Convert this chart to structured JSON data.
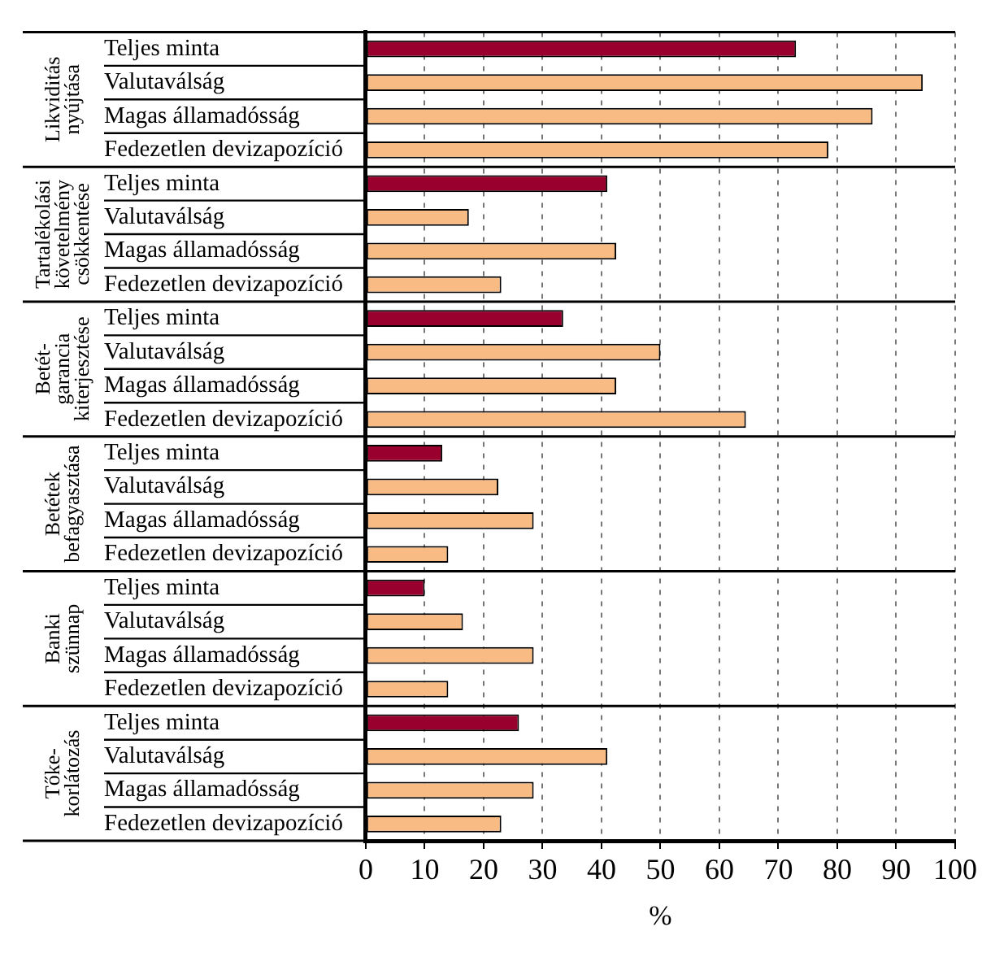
{
  "chart_data": {
    "type": "bar",
    "orientation": "horizontal",
    "xlabel": "%",
    "categories": [
      "Teljes minta",
      "Valutaválság",
      "Magas államadósság",
      "Fedezetlen devizapozíció",
      "Teljes minta",
      "Valutaválság",
      "Magas államadósság",
      "Fedezetlen devizapozíció",
      "Teljes minta",
      "Valutaválság",
      "Magas államadósság",
      "Fedezetlen devizapozíció",
      "Teljes minta",
      "Valutaválság",
      "Magas államadósság",
      "Fedezetlen devizapozíció",
      "Teljes minta",
      "Valutaválság",
      "Magas államadósság",
      "Fedezetlen devizapozíció",
      "Teljes minta",
      "Valutaválság",
      "Magas államadósság",
      "Fedezetlen devizapozíció"
    ],
    "values": [
      73,
      94.5,
      86,
      78.5,
      41,
      17.5,
      42.5,
      23,
      33.5,
      50,
      42.5,
      64.5,
      13,
      22.5,
      28.5,
      14,
      10,
      16.5,
      28.5,
      14,
      26,
      41,
      28.5,
      23
    ],
    "colors": [
      "#99002e",
      "#f9bb84",
      "#f9bb84",
      "#f9bb84",
      "#99002e",
      "#f9bb84",
      "#f9bb84",
      "#f9bb84",
      "#99002e",
      "#f9bb84",
      "#f9bb84",
      "#f9bb84",
      "#99002e",
      "#f9bb84",
      "#f9bb84",
      "#f9bb84",
      "#99002e",
      "#f9bb84",
      "#f9bb84",
      "#f9bb84",
      "#99002e",
      "#f9bb84",
      "#f9bb84",
      "#f9bb84"
    ],
    "annotations": [
      "Likviditás nyújtása",
      "Tartalékolási követelmény csökkentése",
      "Betét-garancia kiterjesztése",
      "Betétek befagyasztása",
      "Banki szünnap",
      "Tőke-korlátozás"
    ],
    "xlim": [
      0,
      100
    ],
    "xticks": [
      0,
      10,
      20,
      30,
      40,
      50,
      60,
      70,
      80,
      90,
      100
    ],
    "grid": "x",
    "legend": false
  }
}
